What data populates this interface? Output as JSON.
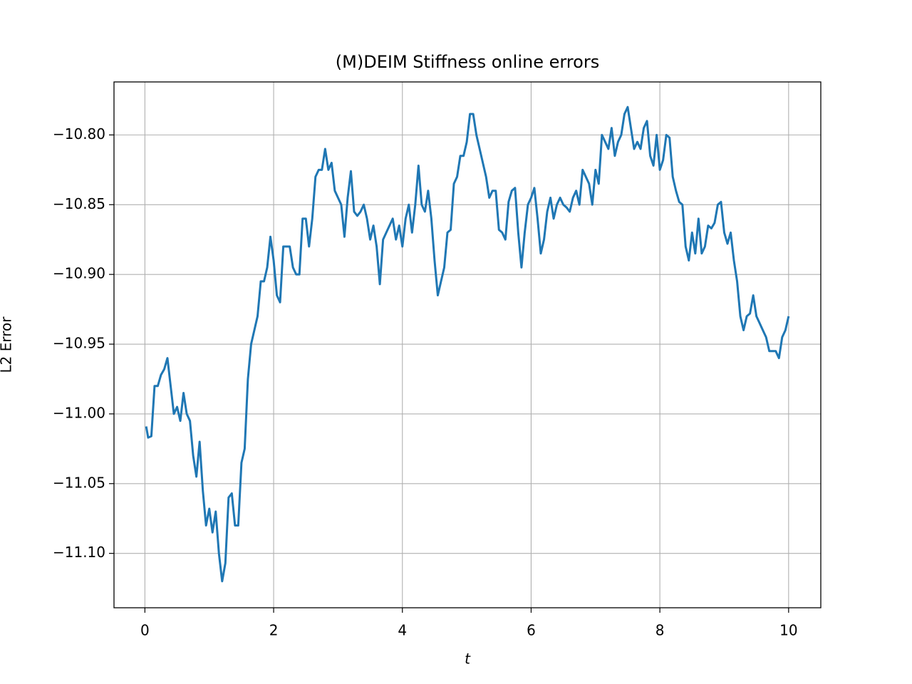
{
  "chart_data": {
    "type": "line",
    "title": "(M)DEIM Stiffness online errors",
    "xlabel": "t",
    "ylabel": "L2 Error",
    "x": [
      0.02,
      0.05,
      0.1,
      0.15,
      0.2,
      0.25,
      0.3,
      0.35,
      0.4,
      0.45,
      0.5,
      0.55,
      0.6,
      0.65,
      0.7,
      0.75,
      0.8,
      0.85,
      0.9,
      0.95,
      1.0,
      1.05,
      1.1,
      1.15,
      1.2,
      1.25,
      1.3,
      1.35,
      1.4,
      1.45,
      1.5,
      1.55,
      1.6,
      1.65,
      1.7,
      1.75,
      1.8,
      1.85,
      1.9,
      1.95,
      2.0,
      2.05,
      2.1,
      2.15,
      2.2,
      2.25,
      2.3,
      2.35,
      2.4,
      2.45,
      2.5,
      2.55,
      2.6,
      2.65,
      2.7,
      2.75,
      2.8,
      2.85,
      2.9,
      2.95,
      3.0,
      3.05,
      3.1,
      3.15,
      3.2,
      3.25,
      3.3,
      3.35,
      3.4,
      3.45,
      3.5,
      3.55,
      3.6,
      3.65,
      3.7,
      3.75,
      3.8,
      3.85,
      3.9,
      3.95,
      4.0,
      4.05,
      4.1,
      4.15,
      4.2,
      4.25,
      4.3,
      4.35,
      4.4,
      4.45,
      4.5,
      4.55,
      4.6,
      4.65,
      4.7,
      4.75,
      4.8,
      4.85,
      4.9,
      4.95,
      5.0,
      5.05,
      5.1,
      5.15,
      5.2,
      5.25,
      5.3,
      5.35,
      5.4,
      5.45,
      5.5,
      5.55,
      5.6,
      5.65,
      5.7,
      5.75,
      5.8,
      5.85,
      5.9,
      5.95,
      6.0,
      6.05,
      6.1,
      6.15,
      6.2,
      6.25,
      6.3,
      6.35,
      6.4,
      6.45,
      6.5,
      6.55,
      6.6,
      6.65,
      6.7,
      6.75,
      6.8,
      6.85,
      6.9,
      6.95,
      7.0,
      7.05,
      7.1,
      7.15,
      7.2,
      7.25,
      7.3,
      7.35,
      7.4,
      7.45,
      7.5,
      7.55,
      7.6,
      7.65,
      7.7,
      7.75,
      7.8,
      7.85,
      7.9,
      7.95,
      8.0,
      8.05,
      8.1,
      8.15,
      8.2,
      8.25,
      8.3,
      8.35,
      8.4,
      8.45,
      8.5,
      8.55,
      8.6,
      8.65,
      8.7,
      8.75,
      8.8,
      8.85,
      8.9,
      8.95,
      9.0,
      9.05,
      9.1,
      9.15,
      9.2,
      9.25,
      9.3,
      9.35,
      9.4,
      9.45,
      9.5,
      9.55,
      9.6,
      9.65,
      9.7,
      9.75,
      9.8,
      9.85,
      9.9,
      9.95,
      10.0
    ],
    "series": [
      {
        "name": "L2 Error",
        "color": "#1f77b4",
        "values": [
          -11.009,
          -11.017,
          -11.016,
          -10.98,
          -10.98,
          -10.972,
          -10.968,
          -10.96,
          -10.98,
          -11.0,
          -10.995,
          -11.005,
          -10.985,
          -11.0,
          -11.005,
          -11.03,
          -11.045,
          -11.02,
          -11.055,
          -11.08,
          -11.068,
          -11.085,
          -11.07,
          -11.1,
          -11.12,
          -11.107,
          -11.06,
          -11.057,
          -11.08,
          -11.08,
          -11.035,
          -11.025,
          -10.975,
          -10.95,
          -10.94,
          -10.93,
          -10.905,
          -10.905,
          -10.895,
          -10.873,
          -10.89,
          -10.915,
          -10.92,
          -10.88,
          -10.88,
          -10.88,
          -10.895,
          -10.9,
          -10.9,
          -10.86,
          -10.86,
          -10.88,
          -10.86,
          -10.83,
          -10.825,
          -10.825,
          -10.81,
          -10.825,
          -10.82,
          -10.84,
          -10.845,
          -10.85,
          -10.873,
          -10.845,
          -10.826,
          -10.855,
          -10.858,
          -10.855,
          -10.85,
          -10.86,
          -10.875,
          -10.865,
          -10.88,
          -10.907,
          -10.875,
          -10.87,
          -10.865,
          -10.86,
          -10.875,
          -10.865,
          -10.88,
          -10.86,
          -10.85,
          -10.87,
          -10.85,
          -10.822,
          -10.85,
          -10.855,
          -10.84,
          -10.86,
          -10.89,
          -10.915,
          -10.905,
          -10.895,
          -10.87,
          -10.868,
          -10.835,
          -10.83,
          -10.815,
          -10.815,
          -10.805,
          -10.785,
          -10.785,
          -10.8,
          -10.81,
          -10.82,
          -10.83,
          -10.845,
          -10.84,
          -10.84,
          -10.868,
          -10.87,
          -10.875,
          -10.848,
          -10.84,
          -10.838,
          -10.87,
          -10.895,
          -10.87,
          -10.85,
          -10.845,
          -10.838,
          -10.86,
          -10.885,
          -10.875,
          -10.855,
          -10.845,
          -10.86,
          -10.85,
          -10.845,
          -10.85,
          -10.852,
          -10.855,
          -10.845,
          -10.84,
          -10.85,
          -10.825,
          -10.83,
          -10.835,
          -10.85,
          -10.825,
          -10.835,
          -10.8,
          -10.805,
          -10.81,
          -10.795,
          -10.815,
          -10.805,
          -10.8,
          -10.785,
          -10.78,
          -10.795,
          -10.81,
          -10.805,
          -10.81,
          -10.795,
          -10.79,
          -10.815,
          -10.822,
          -10.8,
          -10.825,
          -10.818,
          -10.8,
          -10.802,
          -10.83,
          -10.84,
          -10.848,
          -10.85,
          -10.88,
          -10.89,
          -10.87,
          -10.885,
          -10.86,
          -10.885,
          -10.88,
          -10.865,
          -10.867,
          -10.863,
          -10.85,
          -10.848,
          -10.87,
          -10.878,
          -10.87,
          -10.89,
          -10.905,
          -10.93,
          -10.94,
          -10.93,
          -10.928,
          -10.915,
          -10.93,
          -10.935,
          -10.94,
          -10.945,
          -10.955,
          -10.955,
          -10.955,
          -10.96,
          -10.945,
          -10.94,
          -10.93
        ]
      }
    ],
    "xlim": [
      -0.48,
      10.5
    ],
    "xticks": [
      0,
      2,
      4,
      6,
      8,
      10
    ],
    "ylim": [
      -11.139,
      -10.762
    ],
    "yticks": [
      {
        "value": -11.1,
        "label": "−11.10"
      },
      {
        "value": -11.05,
        "label": "−11.05"
      },
      {
        "value": -11.0,
        "label": "−11.00"
      },
      {
        "value": -10.95,
        "label": "−10.95"
      },
      {
        "value": -10.9,
        "label": "−10.90"
      },
      {
        "value": -10.85,
        "label": "−10.85"
      },
      {
        "value": -10.8,
        "label": "−10.80"
      }
    ],
    "grid": true
  }
}
